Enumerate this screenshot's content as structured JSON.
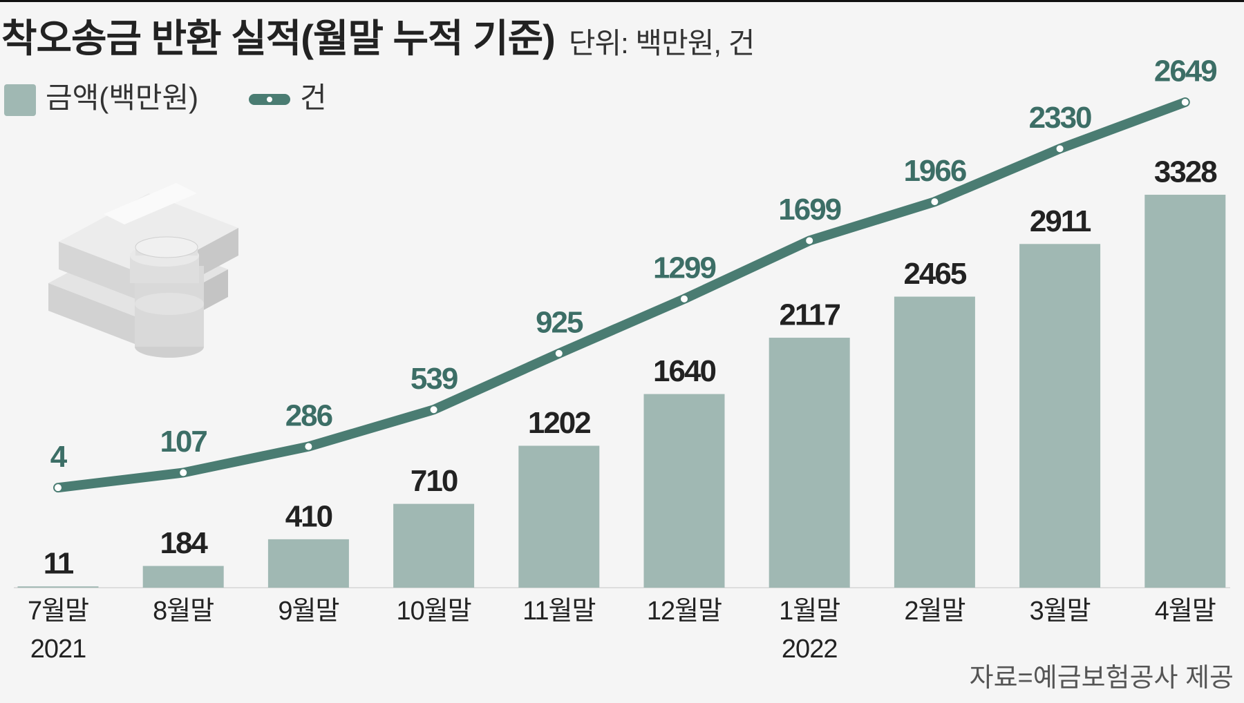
{
  "chart_data": {
    "type": "bar_line",
    "title": "착오송금 반환 실적(월말 누적 기준)",
    "subtitle": "단위: 백만원, 건",
    "categories": [
      "7월말",
      "8월말",
      "9월말",
      "10월말",
      "11월말",
      "12월말",
      "1월말",
      "2월말",
      "3월말",
      "4월말"
    ],
    "year_labels": [
      "2021",
      null,
      null,
      null,
      null,
      null,
      "2022",
      null,
      null,
      null
    ],
    "series": [
      {
        "name": "금액(백만원)",
        "type": "bar",
        "color": "#a0b8b3",
        "label_color": "#222222",
        "values": [
          11,
          184,
          410,
          710,
          1202,
          1640,
          2117,
          2465,
          2911,
          3328
        ]
      },
      {
        "name": "건",
        "type": "line",
        "color": "#4a7c72",
        "label_color": "#3c6e66",
        "values": [
          4,
          107,
          286,
          539,
          925,
          1299,
          1699,
          1966,
          2330,
          2649
        ]
      }
    ],
    "source": "자료=예금보험공사 제공"
  }
}
